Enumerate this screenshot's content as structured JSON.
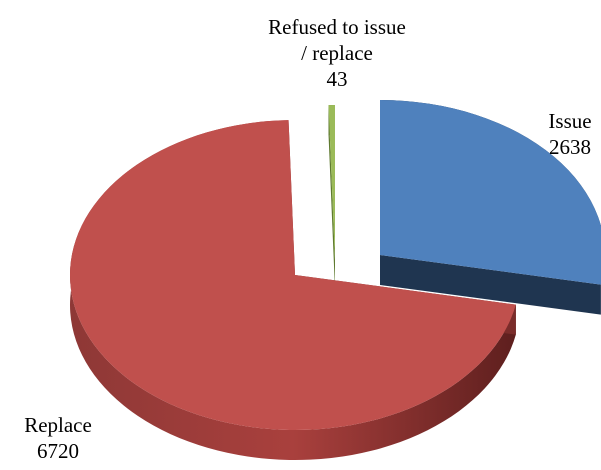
{
  "chart_data": {
    "type": "pie",
    "title": "",
    "slices": [
      {
        "label": "Issue",
        "value": 2638,
        "color": "#4F81BD",
        "side_color": "#1F3550",
        "label_lines": [
          "Issue"
        ]
      },
      {
        "label": "Replace",
        "value": 6720,
        "color": "#C0504D",
        "side_color": "#7A2C2A",
        "label_lines": [
          "Replace"
        ]
      },
      {
        "label": "Refused to issue / replace",
        "value": 43,
        "color": "#9BBB59",
        "side_color": "#5F7A30",
        "label_lines": [
          "Refused to issue",
          "/ replace"
        ]
      }
    ],
    "style": "3d-exploded",
    "legend": "none"
  }
}
